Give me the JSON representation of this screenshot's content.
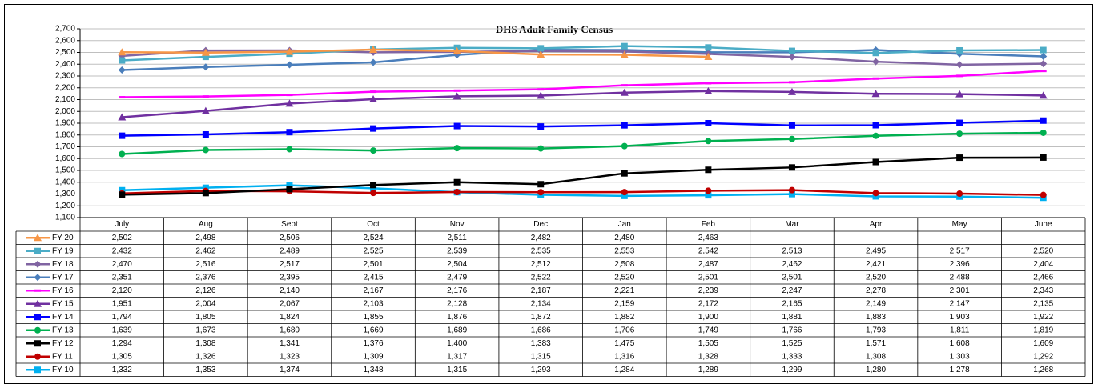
{
  "chart_data": {
    "type": "line",
    "title": "DHS Adult Family Census",
    "categories": [
      "July",
      "Aug",
      "Sept",
      "Oct",
      "Nov",
      "Dec",
      "Jan",
      "Feb",
      "Mar",
      "Apr",
      "May",
      "June"
    ],
    "ylim": [
      1100,
      2700
    ],
    "yticks": [
      {
        "value": 1100,
        "label": "1,100"
      },
      {
        "value": 1200,
        "label": "1,200"
      },
      {
        "value": 1300,
        "label": "1,300"
      },
      {
        "value": 1400,
        "label": "1,400"
      },
      {
        "value": 1500,
        "label": "1,500"
      },
      {
        "value": 1600,
        "label": "1,600"
      },
      {
        "value": 1700,
        "label": "1,700"
      },
      {
        "value": 1800,
        "label": "1,800"
      },
      {
        "value": 1900,
        "label": "1,900"
      },
      {
        "value": 2000,
        "label": "2,000"
      },
      {
        "value": 2100,
        "label": "2,100"
      },
      {
        "value": 2200,
        "label": "2,200"
      },
      {
        "value": 2300,
        "label": "2,300"
      },
      {
        "value": 2400,
        "label": "2,400"
      },
      {
        "value": 2500,
        "label": "2,500"
      },
      {
        "value": 2600,
        "label": "2,600"
      },
      {
        "value": 2700,
        "label": "2,700"
      }
    ],
    "grid": true,
    "series": [
      {
        "name": "FY 20",
        "color": "#f79646",
        "marker": "triangle",
        "values": [
          2502,
          2498,
          2506,
          2524,
          2511,
          2482,
          2480,
          2463,
          null,
          null,
          null,
          null
        ],
        "value_labels": [
          "2,502",
          "2,498",
          "2,506",
          "2,524",
          "2,511",
          "2,482",
          "2,480",
          "2,463",
          null,
          null,
          null,
          null
        ]
      },
      {
        "name": "FY 19",
        "color": "#4bacc6",
        "marker": "square",
        "values": [
          2432,
          2462,
          2489,
          2525,
          2539,
          2535,
          2553,
          2542,
          2513,
          2495,
          2517,
          2520
        ],
        "value_labels": [
          "2,432",
          "2,462",
          "2,489",
          "2,525",
          "2,539",
          "2,535",
          "2,553",
          "2,542",
          "2,513",
          "2,495",
          "2,517",
          "2,520"
        ]
      },
      {
        "name": "FY 18",
        "color": "#8064a2",
        "marker": "diamond",
        "values": [
          2470,
          2516,
          2517,
          2501,
          2504,
          2512,
          2508,
          2487,
          2462,
          2421,
          2396,
          2404
        ],
        "value_labels": [
          "2,470",
          "2,516",
          "2,517",
          "2,501",
          "2,504",
          "2,512",
          "2,508",
          "2,487",
          "2,462",
          "2,421",
          "2,396",
          "2,404"
        ]
      },
      {
        "name": "FY 17",
        "color": "#4a7ebb",
        "marker": "diamond",
        "values": [
          2351,
          2376,
          2395,
          2415,
          2479,
          2522,
          2520,
          2501,
          2501,
          2520,
          2488,
          2466
        ],
        "value_labels": [
          "2,351",
          "2,376",
          "2,395",
          "2,415",
          "2,479",
          "2,522",
          "2,520",
          "2,501",
          "2,501",
          "2,520",
          "2,488",
          "2,466"
        ]
      },
      {
        "name": "FY 16",
        "color": "#ff00ff",
        "marker": "dash",
        "values": [
          2120,
          2126,
          2140,
          2167,
          2176,
          2187,
          2221,
          2239,
          2247,
          2278,
          2301,
          2343
        ],
        "value_labels": [
          "2,120",
          "2,126",
          "2,140",
          "2,167",
          "2,176",
          "2,187",
          "2,221",
          "2,239",
          "2,247",
          "2,278",
          "2,301",
          "2,343"
        ]
      },
      {
        "name": "FY 15",
        "color": "#7030a0",
        "marker": "triangle",
        "values": [
          1951,
          2004,
          2067,
          2103,
          2128,
          2134,
          2159,
          2172,
          2165,
          2149,
          2147,
          2135
        ],
        "value_labels": [
          "1,951",
          "2,004",
          "2,067",
          "2,103",
          "2,128",
          "2,134",
          "2,159",
          "2,172",
          "2,165",
          "2,149",
          "2,147",
          "2,135"
        ]
      },
      {
        "name": "FY 14",
        "color": "#0000ff",
        "marker": "square",
        "values": [
          1794,
          1805,
          1824,
          1855,
          1876,
          1872,
          1882,
          1900,
          1881,
          1883,
          1903,
          1922
        ],
        "value_labels": [
          "1,794",
          "1,805",
          "1,824",
          "1,855",
          "1,876",
          "1,872",
          "1,882",
          "1,900",
          "1,881",
          "1,883",
          "1,903",
          "1,922"
        ]
      },
      {
        "name": "FY 13",
        "color": "#00b050",
        "marker": "circle",
        "values": [
          1639,
          1673,
          1680,
          1669,
          1689,
          1686,
          1706,
          1749,
          1766,
          1793,
          1811,
          1819
        ],
        "value_labels": [
          "1,639",
          "1,673",
          "1,680",
          "1,669",
          "1,689",
          "1,686",
          "1,706",
          "1,749",
          "1,766",
          "1,793",
          "1,811",
          "1,819"
        ]
      },
      {
        "name": "FY 12",
        "color": "#000000",
        "marker": "square",
        "values": [
          1294,
          1308,
          1341,
          1376,
          1400,
          1383,
          1475,
          1505,
          1525,
          1571,
          1608,
          1609
        ],
        "value_labels": [
          "1,294",
          "1,308",
          "1,341",
          "1,376",
          "1,400",
          "1,383",
          "1,475",
          "1,505",
          "1,525",
          "1,571",
          "1,608",
          "1,609"
        ]
      },
      {
        "name": "FY 11",
        "color": "#c00000",
        "marker": "circle",
        "values": [
          1305,
          1326,
          1323,
          1309,
          1317,
          1315,
          1316,
          1328,
          1333,
          1308,
          1303,
          1292
        ],
        "value_labels": [
          "1,305",
          "1,326",
          "1,323",
          "1,309",
          "1,317",
          "1,315",
          "1,316",
          "1,328",
          "1,333",
          "1,308",
          "1,303",
          "1,292"
        ]
      },
      {
        "name": "FY 10",
        "color": "#00b0f0",
        "marker": "square",
        "values": [
          1332,
          1353,
          1374,
          1348,
          1315,
          1293,
          1284,
          1289,
          1299,
          1280,
          1278,
          1268
        ],
        "value_labels": [
          "1,332",
          "1,353",
          "1,374",
          "1,348",
          "1,315",
          "1,293",
          "1,284",
          "1,289",
          "1,299",
          "1,280",
          "1,278",
          "1,268"
        ]
      }
    ]
  }
}
